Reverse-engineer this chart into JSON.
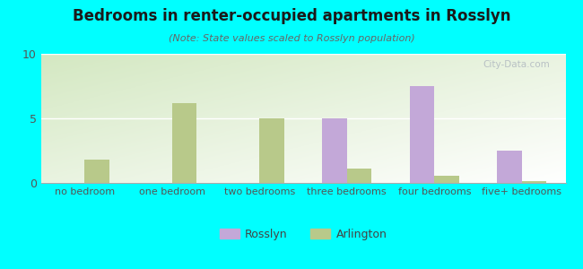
{
  "title": "Bedrooms in renter-occupied apartments in Rosslyn",
  "subtitle": "(Note: State values scaled to Rosslyn population)",
  "categories": [
    "no bedroom",
    "one bedroom",
    "two bedrooms",
    "three bedrooms",
    "four bedrooms",
    "five+ bedrooms"
  ],
  "rosslyn_values": [
    0,
    0,
    0,
    5,
    7.5,
    2.5
  ],
  "arlington_values": [
    1.8,
    6.2,
    5.0,
    1.1,
    0.55,
    0.12
  ],
  "rosslyn_color": "#c3a8d8",
  "arlington_color": "#b8c98a",
  "ylim": [
    0,
    10
  ],
  "yticks": [
    0,
    5,
    10
  ],
  "background_color": "#00ffff",
  "watermark": "City-Data.com",
  "bar_width": 0.28
}
